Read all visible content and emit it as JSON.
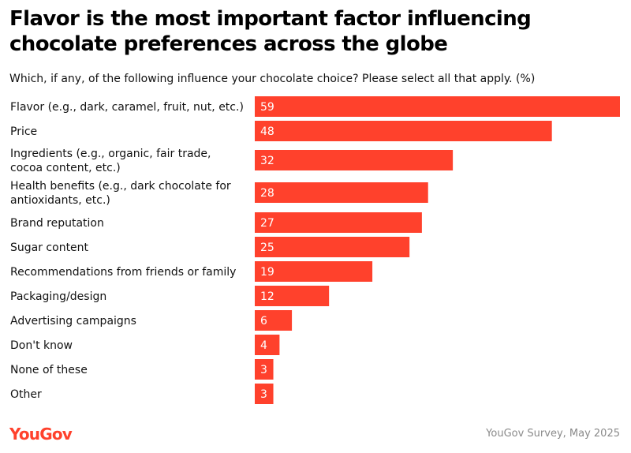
{
  "title": "Flavor is the most important factor influencing chocolate preferences across the globe",
  "subtitle": "Which, if any, of the following influence your chocolate choice? Please select all that apply. (%)",
  "source": "YouGov Survey, May 2025",
  "logo": "YouGov",
  "colors": {
    "bar": "#ff412c",
    "bar_label": "#ffffff",
    "logo": "#ff412c",
    "source": "#8a8a8a"
  },
  "chart_data": {
    "type": "bar",
    "orientation": "horizontal",
    "title": "Flavor is the most important factor influencing chocolate preferences across the globe",
    "subtitle": "Which, if any, of the following influence your chocolate choice? Please select all that apply. (%)",
    "categories": [
      [
        "Flavor (e.g., dark, caramel, fruit, nut, etc.)"
      ],
      [
        "Price"
      ],
      [
        "Ingredients (e.g., organic, fair trade,",
        "cocoa content, etc.)"
      ],
      [
        "Health benefits (e.g., dark chocolate for",
        "antioxidants, etc.)"
      ],
      [
        "Brand reputation"
      ],
      [
        "Sugar content"
      ],
      [
        "Recommendations from friends or family"
      ],
      [
        "Packaging/design"
      ],
      [
        "Advertising campaigns"
      ],
      [
        "Don't know"
      ],
      [
        "None of these"
      ],
      [
        "Other"
      ]
    ],
    "values": [
      59,
      48,
      32,
      28,
      27,
      25,
      19,
      12,
      6,
      4,
      3,
      3
    ],
    "value_labels": [
      "59",
      "48",
      "32",
      "28",
      "27",
      "25",
      "19",
      "12",
      "6",
      "4",
      "3",
      "3"
    ],
    "xlim": [
      0,
      59
    ],
    "grid": false,
    "legend": "none"
  }
}
